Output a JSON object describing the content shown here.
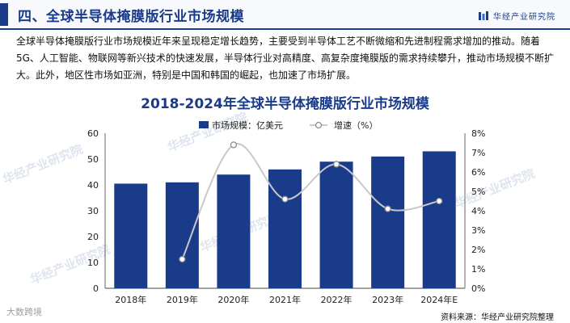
{
  "header": {
    "title": "四、全球半导体掩膜版行业市场规模",
    "logo_text": "华经产业研究院"
  },
  "intro": "全球半导体掩膜版行业市场规模近年来呈现稳定增长趋势，主要受到半导体工艺不断微缩和先进制程需求增加的推动。随着5G、人工智能、物联网等新兴技术的快速发展，半导体行业对高精度、高复杂度掩膜版的需求持续攀升，推动市场规模不断扩大。此外，地区性市场如亚洲，特别是中国和韩国的崛起，也加速了市场扩展。",
  "watermark": "华经产业研究院",
  "corner_watermark": "大数跨境",
  "source": "资料来源：华经产业研究院整理",
  "colors": {
    "bar": "#1a3a8a",
    "line": "#c8c8c8",
    "title": "#1a3a8a"
  },
  "chart_data": {
    "type": "bar+line",
    "title": "2018-2024年全球半导体掩膜版行业市场规模",
    "categories": [
      "2018年",
      "2019年",
      "2020年",
      "2021年",
      "2022年",
      "2023年",
      "2024年E"
    ],
    "series": [
      {
        "name": "市场规模：亿美元",
        "type": "bar",
        "axis": "left",
        "values": [
          40.5,
          41,
          44,
          46,
          49,
          51,
          53
        ]
      },
      {
        "name": "增速（%）",
        "type": "line",
        "axis": "right",
        "values": [
          null,
          1.5,
          7.4,
          4.6,
          6.4,
          4.1,
          4.5
        ]
      }
    ],
    "ylim_left": [
      0,
      60
    ],
    "yticks_left": [
      "0",
      "10",
      "20",
      "30",
      "40",
      "50",
      "60"
    ],
    "ylim_right": [
      0,
      8
    ],
    "yticks_right": [
      "0%",
      "1%",
      "2%",
      "3%",
      "4%",
      "5%",
      "6%",
      "7%",
      "8%"
    ],
    "legend": "top-center",
    "grid": false
  }
}
